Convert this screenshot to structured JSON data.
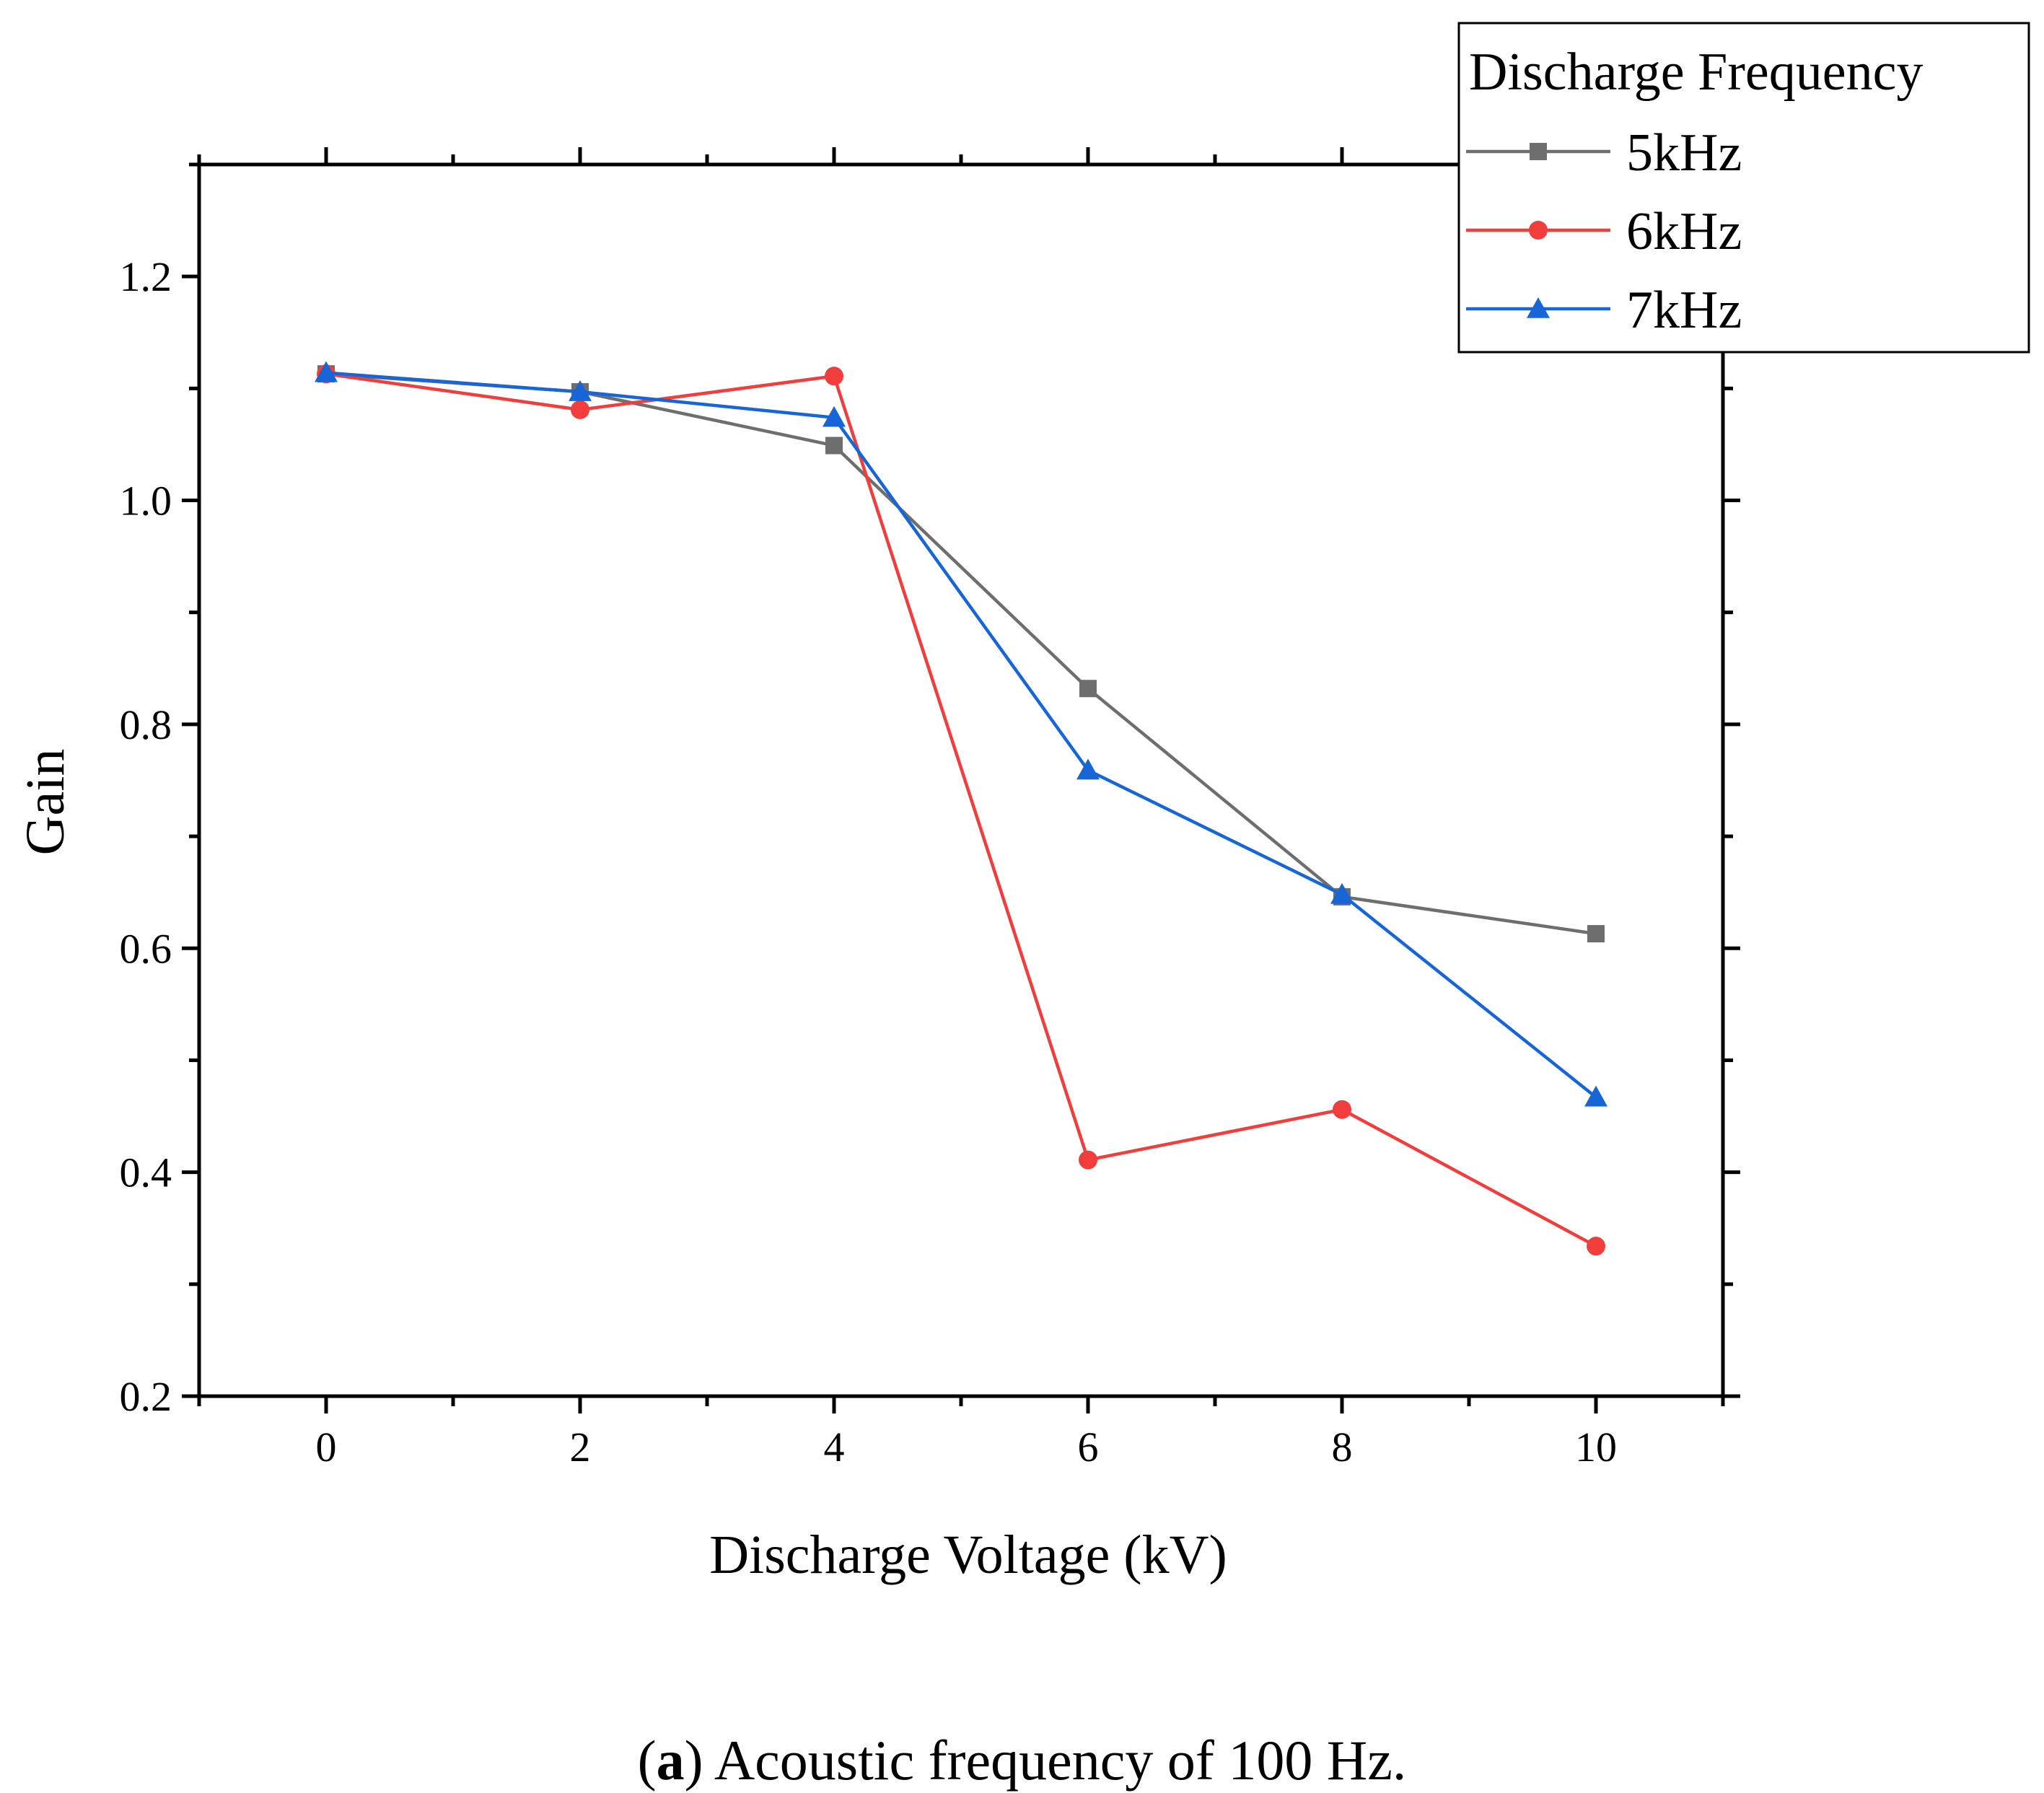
{
  "chart_data": {
    "type": "line",
    "title": "",
    "xlabel": "Discharge Voltage (kV)",
    "ylabel": "Gain",
    "xlim": [
      -1,
      11
    ],
    "ylim": [
      0.2,
      1.3
    ],
    "x": [
      0,
      2,
      4,
      6,
      8,
      10
    ],
    "x_ticks": [
      0,
      2,
      4,
      6,
      8,
      10
    ],
    "x_tick_labels": [
      "0",
      "2",
      "4",
      "6",
      "8",
      "10"
    ],
    "y_ticks": [
      0.2,
      0.4,
      0.6,
      0.8,
      1.0,
      1.2
    ],
    "y_tick_labels": [
      "0.2",
      "0.4",
      "0.6",
      "0.8",
      "1.0",
      "1.2"
    ],
    "legend_title": "Discharge Frequency",
    "legend_position": "top-right",
    "grid": false,
    "series": [
      {
        "name": "5kHz",
        "color": "#6e6e6e",
        "marker": "square",
        "values": [
          1.113,
          1.097,
          1.049,
          0.832,
          0.646,
          0.613
        ]
      },
      {
        "name": "6kHz",
        "color": "#f23d3d",
        "marker": "circle",
        "values": [
          1.113,
          1.081,
          1.111,
          0.411,
          0.456,
          0.334
        ]
      },
      {
        "name": "7kHz",
        "color": "#1666d8",
        "marker": "triangle",
        "values": [
          1.114,
          1.097,
          1.074,
          0.759,
          0.648,
          0.467
        ]
      }
    ]
  },
  "caption": {
    "label": "a",
    "open_paren": "(",
    "close_paren": ")",
    "text": " Acoustic frequency of 100 Hz."
  }
}
